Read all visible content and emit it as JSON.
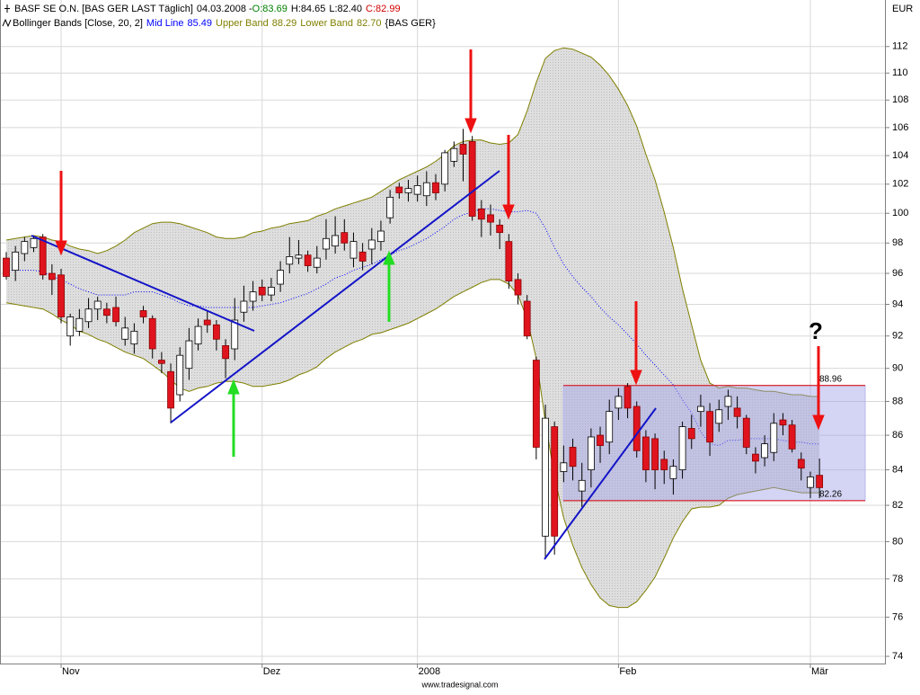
{
  "chart_data": {
    "type": "candlestick",
    "symbol": "BASF SE O.N. [BAS GER LAST Täglich]",
    "date_label": "04.03.2008 -",
    "quote_labels": [
      "O:83.69",
      "H:84.65",
      "L:82.40",
      "C:82.99"
    ],
    "quote_colors": [
      "#008000",
      "#000000",
      "#000000",
      "#d40000"
    ],
    "categories": [
      null,
      null,
      null,
      null,
      null,
      null,
      "Nov",
      null,
      null,
      null,
      null,
      null,
      null,
      null,
      null,
      null,
      null,
      null,
      null,
      null,
      null,
      null,
      null,
      null,
      null,
      null,
      null,
      null,
      "Dez",
      null,
      null,
      null,
      null,
      null,
      null,
      null,
      null,
      null,
      null,
      null,
      null,
      null,
      null,
      null,
      null,
      "2008",
      null,
      null,
      null,
      null,
      null,
      null,
      null,
      null,
      null,
      null,
      null,
      null,
      null,
      null,
      null,
      null,
      null,
      null,
      null,
      null,
      null,
      "Feb",
      null,
      null,
      null,
      null,
      null,
      null,
      null,
      null,
      null,
      null,
      null,
      null,
      null,
      null,
      null,
      null,
      null,
      null,
      null,
      null,
      "Mär",
      null
    ],
    "open": [
      97.0,
      96.2,
      97.3,
      97.7,
      98.4,
      96.0,
      95.9,
      92.0,
      92.3,
      92.9,
      93.7,
      93.7,
      93.8,
      91.8,
      91.5,
      93.6,
      93.1,
      90.5,
      89.8,
      88.4,
      90.0,
      91.5,
      93.0,
      92.7,
      91.4,
      91.2,
      93.5,
      94.2,
      95.1,
      94.6,
      95.3,
      96.6,
      97.0,
      97.2,
      96.4,
      97.6,
      97.8,
      98.7,
      97.0,
      97.4,
      97.6,
      98.1,
      99.7,
      101.8,
      101.4,
      101.3,
      101.2,
      102.1,
      102.0,
      103.6,
      104.8,
      105.0,
      100.3,
      99.9,
      99.2,
      98.1,
      95.6,
      94.2,
      90.5,
      80.3,
      86.5,
      83.9,
      85.3,
      82.8,
      84.0,
      86.0,
      85.6,
      87.6,
      88.9,
      87.7,
      85.9,
      85.8,
      84.6,
      83.5,
      84.0,
      86.4,
      87.4,
      87.4,
      86.7,
      87.7,
      87.6,
      87.0,
      84.9,
      84.7,
      85.0,
      86.9,
      86.6,
      84.6,
      83.0,
      83.69
    ],
    "high": [
      97.4,
      97.8,
      98.4,
      98.5,
      98.6,
      96.6,
      96.3,
      93.4,
      93.7,
      94.4,
      94.5,
      94.1,
      94.5,
      93.2,
      92.8,
      93.9,
      93.3,
      91.0,
      90.3,
      91.3,
      92.5,
      93.1,
      93.6,
      93.0,
      91.8,
      94.4,
      95.2,
      95.5,
      95.6,
      95.7,
      96.8,
      98.4,
      98.2,
      97.5,
      97.8,
      99.6,
      99.8,
      99.6,
      98.7,
      98.0,
      99.0,
      99.5,
      101.6,
      102.1,
      102.3,
      102.6,
      102.9,
      102.7,
      104.4,
      105.0,
      105.9,
      105.4,
      100.9,
      100.6,
      99.6,
      98.6,
      96.0,
      94.6,
      90.7,
      87.8,
      86.8,
      85.4,
      85.8,
      84.4,
      86.4,
      86.5,
      88.1,
      88.8,
      89.1,
      88.0,
      86.3,
      86.1,
      85.1,
      84.6,
      86.8,
      87.2,
      88.4,
      87.9,
      88.1,
      88.7,
      88.3,
      87.2,
      85.3,
      86.0,
      87.3,
      87.3,
      86.9,
      85.0,
      83.9,
      84.65
    ],
    "low": [
      95.6,
      95.5,
      96.8,
      97.4,
      95.6,
      94.6,
      92.8,
      91.4,
      92.0,
      92.5,
      93.0,
      92.8,
      92.6,
      91.4,
      90.9,
      92.8,
      90.6,
      89.7,
      86.7,
      88.0,
      89.3,
      91.1,
      92.2,
      91.1,
      89.4,
      90.5,
      92.9,
      93.6,
      94.2,
      94.2,
      94.8,
      96.0,
      96.6,
      96.1,
      96.0,
      96.9,
      97.3,
      97.5,
      96.4,
      96.2,
      96.6,
      97.5,
      99.3,
      101.0,
      100.8,
      100.8,
      100.5,
      100.9,
      101.5,
      103.2,
      102.2,
      99.5,
      98.4,
      98.5,
      97.6,
      95.0,
      94.0,
      91.8,
      84.6,
      79.1,
      79.3,
      83.3,
      83.4,
      81.9,
      83.0,
      84.4,
      84.9,
      86.9,
      87.0,
      84.7,
      83.3,
      82.9,
      83.2,
      82.6,
      83.5,
      85.2,
      86.5,
      84.8,
      86.2,
      86.9,
      86.4,
      84.9,
      83.8,
      84.2,
      84.5,
      86.0,
      85.0,
      83.4,
      82.4,
      82.4
    ],
    "close": [
      95.8,
      97.4,
      98.1,
      98.3,
      95.9,
      95.6,
      93.2,
      93.2,
      93.1,
      93.7,
      94.2,
      93.3,
      92.9,
      92.5,
      92.3,
      93.2,
      91.2,
      90.3,
      87.6,
      90.8,
      91.7,
      92.6,
      92.7,
      91.8,
      90.6,
      93.0,
      94.2,
      94.8,
      94.6,
      95.1,
      96.2,
      97.1,
      97.2,
      96.5,
      97.0,
      98.3,
      98.5,
      98.0,
      98.1,
      96.8,
      98.2,
      98.8,
      101.1,
      101.4,
      101.7,
      101.9,
      102.1,
      101.4,
      104.2,
      104.5,
      104.1,
      99.8,
      99.6,
      99.4,
      98.7,
      95.5,
      94.6,
      92.0,
      85.3,
      87.0,
      80.3,
      84.4,
      84.2,
      83.4,
      85.9,
      85.4,
      87.4,
      88.3,
      87.6,
      85.1,
      84.0,
      84.0,
      84.0,
      84.2,
      86.5,
      85.8,
      87.7,
      85.6,
      87.5,
      88.3,
      87.1,
      85.3,
      84.5,
      85.5,
      86.7,
      86.6,
      85.2,
      84.1,
      83.6,
      82.99
    ],
    "up_color": "#ffffff",
    "down_color": "#e0141e",
    "indicator": {
      "name": "Bollinger Bands [Close, 20, 2]",
      "source": "{BAS GER}",
      "fill": "#d6d6d6",
      "series": [
        {
          "name": "Mid Line",
          "color": "#0000ff",
          "dashed": true,
          "last_label": "85.49",
          "values": [
            96.2,
            96.2,
            96.2,
            96.2,
            96.1,
            95.8,
            95.6,
            95.3,
            95.0,
            94.8,
            94.6,
            94.6,
            94.6,
            94.6,
            94.8,
            94.8,
            94.8,
            94.6,
            94.4,
            94.1,
            93.9,
            93.9,
            93.8,
            93.8,
            93.8,
            93.8,
            93.8,
            93.8,
            93.9,
            94.0,
            94.1,
            94.3,
            94.5,
            94.7,
            95.0,
            95.3,
            95.7,
            95.9,
            96.2,
            96.4,
            96.6,
            96.9,
            97.2,
            97.5,
            97.7,
            98.0,
            98.3,
            98.7,
            99.1,
            99.6,
            99.9,
            100.1,
            100.3,
            100.3,
            100.2,
            100.1,
            100.1,
            100.2,
            100.0,
            99.0,
            97.7,
            96.6,
            95.8,
            95.1,
            94.5,
            93.8,
            93.2,
            92.7,
            92.1,
            91.5,
            90.8,
            90.2,
            89.6,
            89.0,
            88.1,
            87.3,
            86.2,
            85.5,
            85.4,
            85.7,
            85.7,
            85.8,
            85.8,
            85.8,
            85.8,
            85.7,
            85.6,
            85.6,
            85.5,
            85.49
          ]
        },
        {
          "name": "Upper Band",
          "color": "#7f7f00",
          "dashed": false,
          "last_label": "88.29",
          "values": [
            98.2,
            98.3,
            98.4,
            98.5,
            98.4,
            98.2,
            98.1,
            97.8,
            97.6,
            97.5,
            97.3,
            97.5,
            97.8,
            98.2,
            98.7,
            99.0,
            99.3,
            99.4,
            99.4,
            99.3,
            99.1,
            98.9,
            98.7,
            98.4,
            98.3,
            98.3,
            98.4,
            98.7,
            98.8,
            99.0,
            99.1,
            99.3,
            99.4,
            99.5,
            99.8,
            100.0,
            100.3,
            100.5,
            100.7,
            100.9,
            101.1,
            101.5,
            101.9,
            102.3,
            102.6,
            102.9,
            103.2,
            103.6,
            104.1,
            104.7,
            105.0,
            105.1,
            105.1,
            104.9,
            104.8,
            104.9,
            105.5,
            107.2,
            109.3,
            111.1,
            111.7,
            111.9,
            111.8,
            111.5,
            111.2,
            110.6,
            109.8,
            108.8,
            107.6,
            106.1,
            104.1,
            102.3,
            100.1,
            97.7,
            95.0,
            92.7,
            90.5,
            89.1,
            88.8,
            88.9,
            88.8,
            88.8,
            88.7,
            88.6,
            88.6,
            88.5,
            88.4,
            88.4,
            88.3,
            88.29
          ]
        },
        {
          "name": "Lower Band",
          "color": "#7f7f00",
          "dashed": false,
          "last_label": "82.70",
          "values": [
            94.1,
            94.0,
            93.9,
            93.8,
            93.7,
            93.4,
            93.0,
            92.7,
            92.3,
            92.1,
            91.8,
            91.6,
            91.3,
            91.0,
            90.8,
            90.6,
            90.2,
            89.8,
            89.3,
            88.8,
            88.6,
            88.8,
            88.9,
            89.1,
            89.2,
            89.2,
            89.1,
            88.9,
            88.9,
            89.0,
            89.1,
            89.3,
            89.6,
            89.8,
            90.1,
            90.6,
            91.0,
            91.3,
            91.6,
            91.8,
            92.1,
            92.2,
            92.4,
            92.6,
            92.8,
            93.1,
            93.4,
            93.7,
            94.1,
            94.5,
            94.8,
            95.1,
            95.4,
            95.6,
            95.6,
            95.3,
            94.6,
            93.1,
            90.6,
            86.8,
            83.6,
            81.3,
            79.8,
            78.6,
            77.7,
            77.0,
            76.6,
            76.5,
            76.5,
            76.8,
            77.4,
            78.1,
            79.1,
            80.2,
            81.1,
            81.8,
            81.9,
            81.9,
            82.0,
            82.4,
            82.6,
            82.7,
            82.8,
            82.9,
            83.0,
            82.9,
            82.8,
            82.7,
            82.7,
            82.7
          ]
        }
      ]
    },
    "ylim": [
      73.64,
      115.6
    ],
    "yticks": [
      74,
      76,
      78,
      80,
      82,
      84,
      86,
      88,
      90,
      92,
      94,
      96,
      98,
      100,
      102,
      104,
      106,
      108,
      110,
      112
    ],
    "log_scale": true,
    "grid": true,
    "y_axis_label": "EUR",
    "levels": [
      88.96,
      82.26
    ],
    "level_color": "#e00000",
    "annotation": "?",
    "annotation_color": "#2020d0",
    "watermark": "www.tradesignal.com"
  }
}
